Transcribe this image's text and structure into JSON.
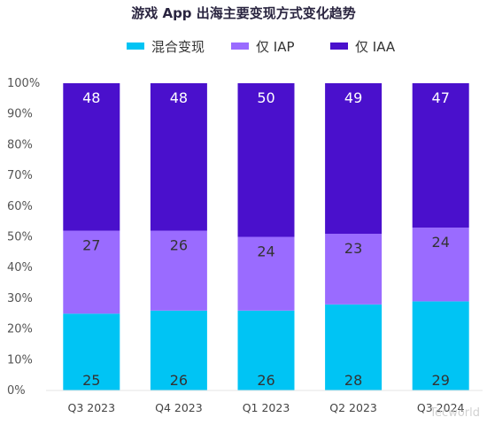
{
  "chart_data": {
    "type": "bar",
    "stacked": true,
    "title": "游戏 App 出海主要变现方式变化趋势",
    "categories": [
      "Q3 2023",
      "Q4 2023",
      "Q1 2023",
      "Q2 2023",
      "Q3 2024"
    ],
    "series": [
      {
        "name": "混合变现",
        "color": "#00c4f4",
        "values": [
          25,
          26,
          26,
          28,
          29
        ]
      },
      {
        "name": "仅 IAP",
        "color": "#9a6bff",
        "values": [
          27,
          26,
          24,
          23,
          24
        ]
      },
      {
        "name": "仅 IAA",
        "color": "#4a10cc",
        "values": [
          48,
          48,
          50,
          49,
          47
        ]
      }
    ],
    "yticks": [
      "0%",
      "10%",
      "20%",
      "30%",
      "40%",
      "50%",
      "60%",
      "70%",
      "80%",
      "90%",
      "100%"
    ],
    "ylim": [
      0,
      100
    ],
    "legend_position": "top-center",
    "grid": false
  },
  "watermark": "Tecworld"
}
